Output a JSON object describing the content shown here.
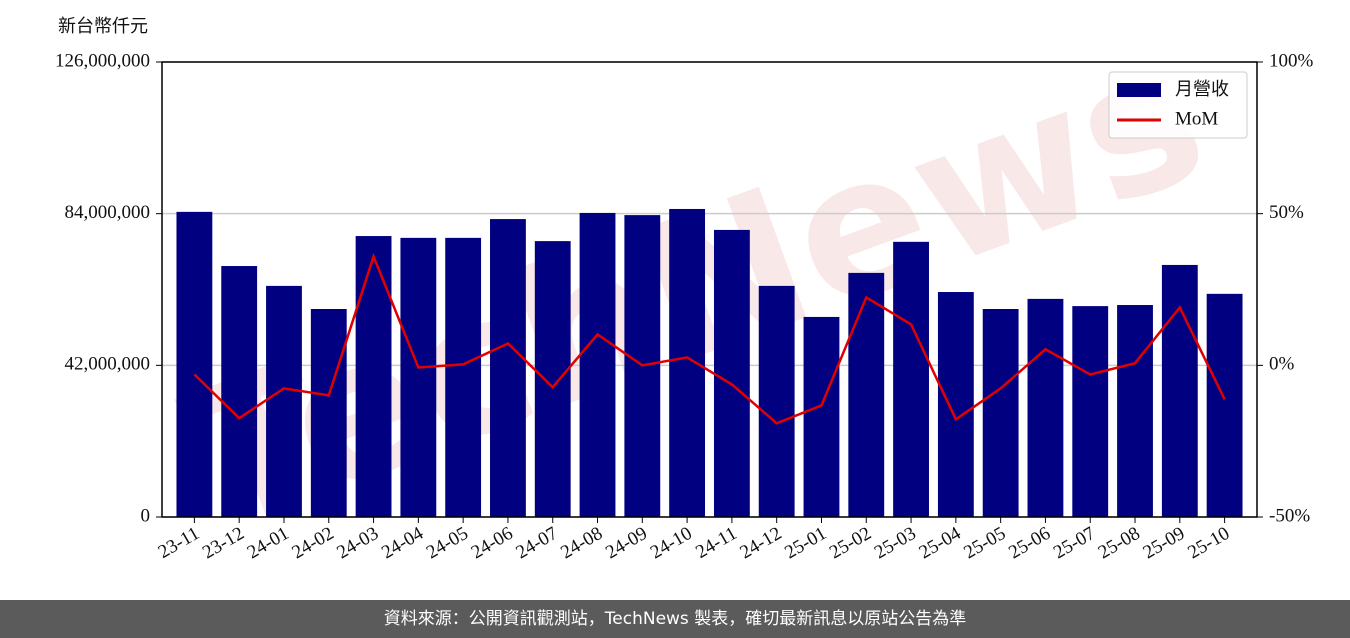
{
  "chart_data": {
    "type": "bar-line",
    "y_label": "新台幣仟元",
    "watermark": "TechNews",
    "categories": [
      "23-11",
      "23-12",
      "24-01",
      "24-02",
      "24-03",
      "24-04",
      "24-05",
      "24-06",
      "24-07",
      "24-08",
      "24-09",
      "24-10",
      "24-11",
      "24-12",
      "25-01",
      "25-02",
      "25-03",
      "25-04",
      "25-05",
      "25-06",
      "25-07",
      "25-08",
      "25-09",
      "25-10"
    ],
    "series": [
      {
        "name": "月營收",
        "type": "bar",
        "color": "#000080",
        "axis": "y",
        "values": [
          84500000,
          69500000,
          64000000,
          57600000,
          77800000,
          77300000,
          77300000,
          82500000,
          76400000,
          84200000,
          83600000,
          85300000,
          79500000,
          64000000,
          55400000,
          67600000,
          76200000,
          62300000,
          57600000,
          60400000,
          58400000,
          58700000,
          69800000,
          61800000
        ]
      },
      {
        "name": "MoM",
        "type": "line",
        "color": "#e00000",
        "axis": "y2",
        "values": [
          -3.0,
          -17.4,
          -7.6,
          -9.9,
          35.9,
          -0.7,
          0.3,
          7.2,
          -7.2,
          10.2,
          0,
          2.6,
          -6.3,
          -19.1,
          -13.2,
          22.4,
          13.5,
          -17.8,
          -7.6,
          5.3,
          -3.0,
          0.7,
          19.1,
          -11.2
        ]
      }
    ],
    "ylim": [
      0,
      126000000
    ],
    "yticks": [
      0,
      {
        "value": 42000000,
        "label": "42,000,000"
      },
      {
        "value": 84000000,
        "label": "84,000,000"
      },
      {
        "value": 126000000,
        "label": "126,000,000"
      }
    ],
    "y2lim": [
      -50,
      100
    ],
    "y2ticks": [
      {
        "value": -50,
        "label": "-50%"
      },
      {
        "value": 0,
        "label": "0%"
      },
      {
        "value": 50,
        "label": "50%"
      },
      {
        "value": 100,
        "label": "100%"
      }
    ],
    "grid": true,
    "legend": "upper right"
  },
  "footer": "資料來源：公開資訊觀測站，TechNews 製表，確切最新訊息以原站公告為準"
}
